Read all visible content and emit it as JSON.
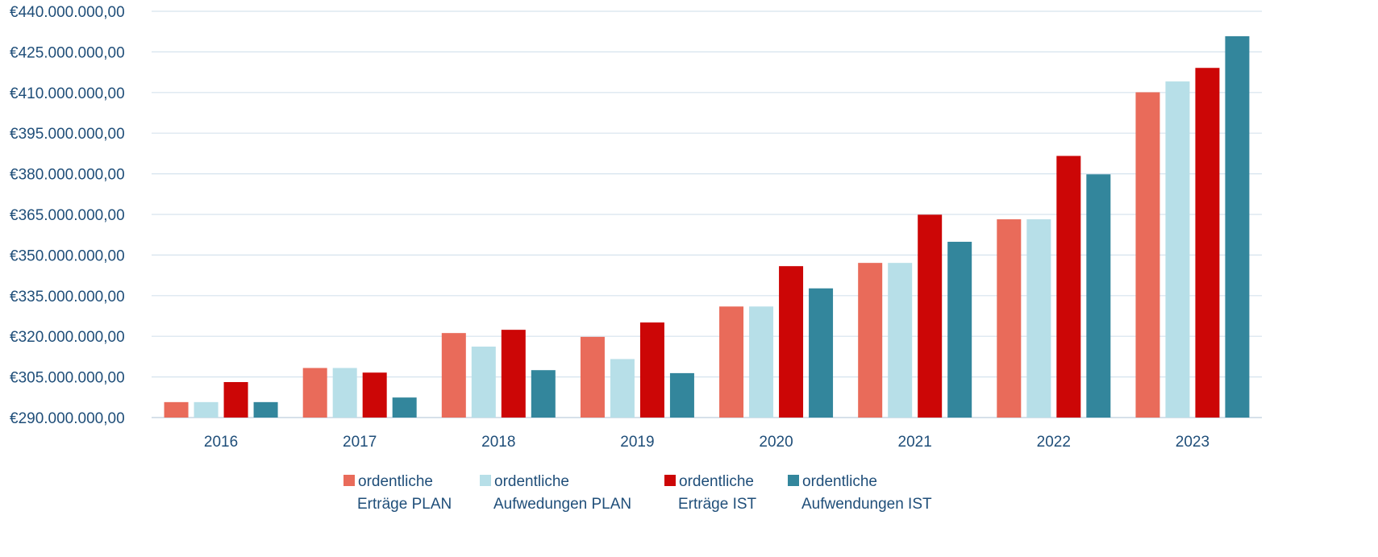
{
  "chart_data": {
    "type": "bar",
    "categories": [
      "2016",
      "2017",
      "2018",
      "2019",
      "2020",
      "2021",
      "2022",
      "2023"
    ],
    "series": [
      {
        "name": "ordentliche Erträge PLAN",
        "label_lines": [
          "ordentliche",
          "Erträge PLAN"
        ],
        "color": "#e96b5a",
        "values": [
          295700000,
          308300000,
          321200000,
          319800000,
          331000000,
          347100000,
          363200000,
          410100000
        ]
      },
      {
        "name": "ordentliche Aufwedungen PLAN",
        "label_lines": [
          "ordentliche",
          "Aufwedungen PLAN"
        ],
        "color": "#b7dfe8",
        "values": [
          295700000,
          308300000,
          316200000,
          311600000,
          331000000,
          347100000,
          363200000,
          414100000
        ]
      },
      {
        "name": "ordentliche Erträge IST",
        "label_lines": [
          "ordentliche",
          "Erträge IST"
        ],
        "color": "#cc0606",
        "values": [
          303100000,
          306600000,
          322400000,
          325100000,
          345900000,
          364900000,
          386600000,
          419100000
        ]
      },
      {
        "name": "ordentliche Aufwendungen IST",
        "label_lines": [
          "ordentliche",
          "Aufwendungen IST"
        ],
        "color": "#33869c",
        "values": [
          295700000,
          297400000,
          307500000,
          306400000,
          337700000,
          354900000,
          379800000,
          430800000
        ]
      }
    ],
    "yticks": [
      "€290.000.000,00",
      "€305.000.000,00",
      "€320.000.000,00",
      "€335.000.000,00",
      "€350.000.000,00",
      "€365.000.000,00",
      "€380.000.000,00",
      "€395.000.000,00",
      "€410.000.000,00",
      "€425.000.000,00",
      "€440.000.000,00"
    ],
    "ylim": [
      290000000,
      440000000
    ],
    "grid": true,
    "legend_position": "bottom",
    "colors": {
      "axis_text": "#1f4e79",
      "gridline": "#d6e3ee",
      "axis_line": "#c8d6e2"
    }
  }
}
